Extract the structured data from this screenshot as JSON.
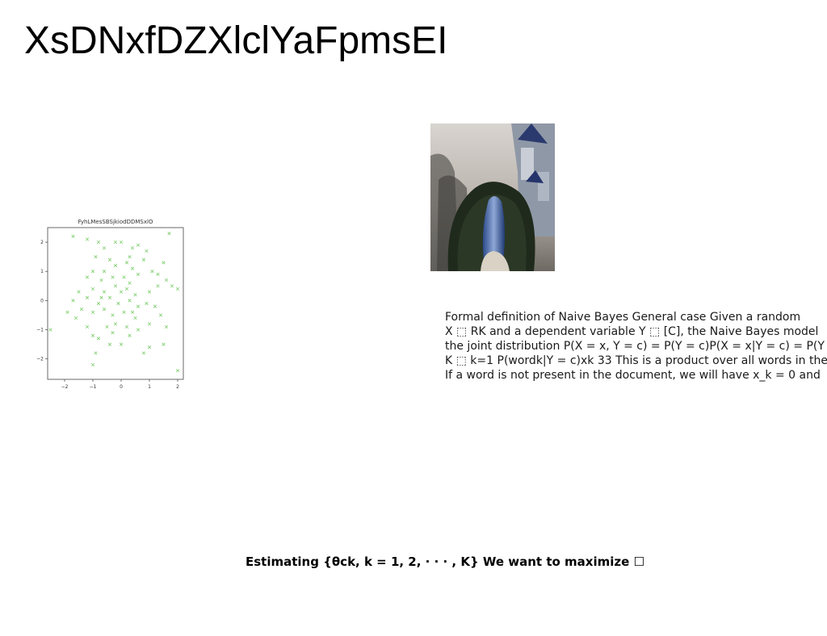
{
  "slide": {
    "title": "XsDNxfDZXlclYaFpmsEI",
    "paragraph_lines": [
      "Formal definition of Naive Bayes General case Given a random",
      "X ⬚ RK and a dependent variable Y ⬚ [C], the Naive Bayes model",
      "the joint distribution P(X = x, Y = c) = P(Y = c)P(X = x|Y = c) = P(Y =",
      "K ⬚ k=1 P(wordk|Y = c)xk 33 This is a product over all words in the",
      "If a word is not present in the document, we will have x_k = 0 and"
    ],
    "bottom_text": "Estimating {θck, k = 1, 2, · · · , K} We want to maximize ☐"
  },
  "chart_data": {
    "type": "scatter",
    "title": "FyhLMesSBSjkiodDDMSxlO",
    "xlabel": "",
    "ylabel": "",
    "xlim": [
      -2.6,
      2.2
    ],
    "ylim": [
      -2.7,
      2.5
    ],
    "xticks": [
      -2,
      -1,
      0,
      1,
      2
    ],
    "yticks": [
      -2,
      -1,
      0,
      1,
      2
    ],
    "xtick_labels": [
      "−2",
      "−1",
      "0",
      "1",
      "2"
    ],
    "ytick_labels": [
      "−2",
      "−1",
      "0",
      "1",
      "2"
    ],
    "marker": "x",
    "color": "#7ccd6b",
    "points": [
      [
        -1.7,
        2.2
      ],
      [
        -1.2,
        2.1
      ],
      [
        -0.8,
        2.0
      ],
      [
        -0.2,
        2.0
      ],
      [
        0.0,
        2.0
      ],
      [
        0.6,
        1.9
      ],
      [
        1.7,
        2.3
      ],
      [
        -0.6,
        1.8
      ],
      [
        0.4,
        1.8
      ],
      [
        0.9,
        1.7
      ],
      [
        -0.9,
        1.5
      ],
      [
        -0.4,
        1.4
      ],
      [
        0.3,
        1.5
      ],
      [
        0.2,
        1.3
      ],
      [
        0.8,
        1.4
      ],
      [
        1.5,
        1.3
      ],
      [
        -1.0,
        1.0
      ],
      [
        -0.6,
        1.0
      ],
      [
        -0.2,
        1.2
      ],
      [
        0.4,
        1.1
      ],
      [
        1.1,
        1.0
      ],
      [
        1.3,
        0.9
      ],
      [
        -1.2,
        0.8
      ],
      [
        -0.7,
        0.7
      ],
      [
        -0.3,
        0.8
      ],
      [
        0.1,
        0.8
      ],
      [
        0.3,
        0.6
      ],
      [
        0.6,
        0.9
      ],
      [
        1.6,
        0.7
      ],
      [
        1.8,
        0.5
      ],
      [
        2.0,
        0.4
      ],
      [
        -1.5,
        0.3
      ],
      [
        -1.0,
        0.4
      ],
      [
        -0.6,
        0.3
      ],
      [
        -0.2,
        0.5
      ],
      [
        0.2,
        0.4
      ],
      [
        0.5,
        0.2
      ],
      [
        1.0,
        0.3
      ],
      [
        1.3,
        0.5
      ],
      [
        -1.7,
        0.0
      ],
      [
        -1.2,
        0.1
      ],
      [
        -0.8,
        -0.1
      ],
      [
        -0.4,
        0.1
      ],
      [
        -0.1,
        -0.1
      ],
      [
        0.3,
        0.0
      ],
      [
        0.6,
        -0.2
      ],
      [
        0.9,
        -0.1
      ],
      [
        1.2,
        -0.2
      ],
      [
        -1.9,
        -0.4
      ],
      [
        -1.4,
        -0.3
      ],
      [
        -1.0,
        -0.4
      ],
      [
        -0.6,
        -0.3
      ],
      [
        -0.3,
        -0.5
      ],
      [
        0.1,
        -0.4
      ],
      [
        0.5,
        -0.6
      ],
      [
        1.4,
        -0.5
      ],
      [
        -2.5,
        -1.0
      ],
      [
        -1.6,
        -0.6
      ],
      [
        -1.2,
        -0.9
      ],
      [
        -0.5,
        -0.9
      ],
      [
        -0.2,
        -0.8
      ],
      [
        0.2,
        -0.9
      ],
      [
        0.6,
        -1.0
      ],
      [
        1.0,
        -0.8
      ],
      [
        1.6,
        -0.9
      ],
      [
        -1.0,
        -1.2
      ],
      [
        -0.3,
        -1.1
      ],
      [
        0.3,
        -1.2
      ],
      [
        -0.8,
        -1.3
      ],
      [
        0.0,
        -1.5
      ],
      [
        1.0,
        -1.6
      ],
      [
        1.5,
        -1.5
      ],
      [
        -0.9,
        -1.8
      ],
      [
        0.8,
        -1.8
      ],
      [
        -1.0,
        -2.2
      ],
      [
        2.0,
        -2.4
      ],
      [
        -0.4,
        -1.5
      ],
      [
        0.4,
        -0.4
      ],
      [
        -0.7,
        0.1
      ],
      [
        0.0,
        0.3
      ]
    ]
  }
}
